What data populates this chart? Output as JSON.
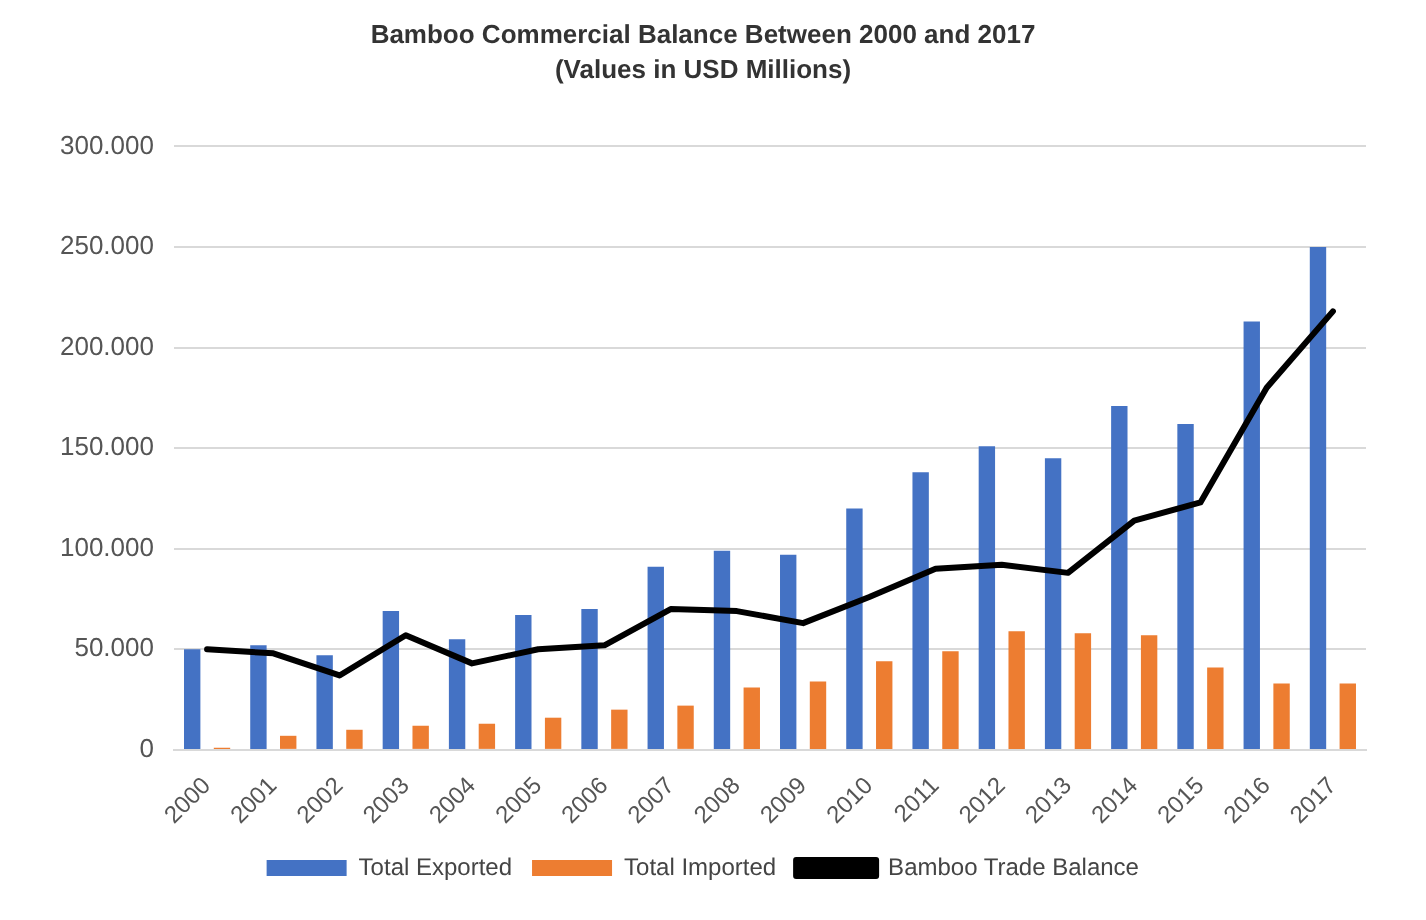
{
  "chart_data": {
    "type": "bar",
    "title": "Bamboo Commercial Balance Between 2000 and 2017",
    "subtitle": "(Values in USD Millions)",
    "categories": [
      "2000",
      "2001",
      "2002",
      "2003",
      "2004",
      "2005",
      "2006",
      "2007",
      "2008",
      "2009",
      "2010",
      "2011",
      "2012",
      "2013",
      "2014",
      "2015",
      "2016",
      "2017"
    ],
    "series": [
      {
        "name": "Total Exported",
        "color": "#4472c4",
        "values": [
          50000,
          52000,
          47000,
          69000,
          55000,
          67000,
          70000,
          91000,
          99000,
          97000,
          120000,
          138000,
          151000,
          145000,
          171000,
          162000,
          213000,
          250000
        ]
      },
      {
        "name": "Total Imported",
        "color": "#ed7d31",
        "values": [
          1000,
          7000,
          10000,
          12000,
          13000,
          16000,
          20000,
          22000,
          31000,
          34000,
          44000,
          49000,
          59000,
          58000,
          57000,
          41000,
          33000,
          33000
        ]
      },
      {
        "name": "Bamboo Trade Balance",
        "type": "line",
        "color": "#000000",
        "values": [
          50000,
          48000,
          37000,
          57000,
          43000,
          50000,
          52000,
          70000,
          69000,
          63000,
          76000,
          90000,
          92000,
          88000,
          114000,
          123000,
          180000,
          218000
        ]
      }
    ],
    "ylim": [
      0,
      300000
    ],
    "yticks": [
      0,
      {
        "value": 50000,
        "label": "50.000"
      },
      {
        "value": 100000,
        "label": "100.000"
      },
      {
        "value": 150000,
        "label": "150.000"
      },
      {
        "value": 200000,
        "label": "200.000"
      },
      {
        "value": 250000,
        "label": "250.000"
      },
      {
        "value": 300000,
        "label": "300.000"
      }
    ],
    "grid": "y",
    "legend": "bottom",
    "marker": "none",
    "line_style": "solid"
  }
}
